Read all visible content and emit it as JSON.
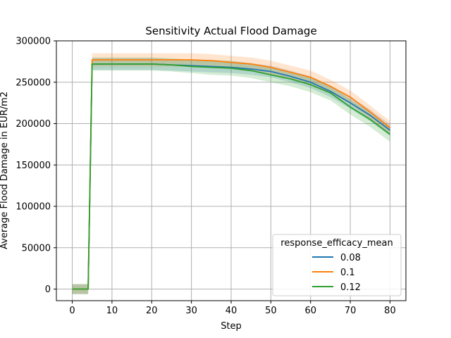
{
  "chart_data": {
    "type": "line",
    "title": "Sensitivity Actual Flood Damage",
    "xlabel": "Step",
    "ylabel": "Average Flood Damage in EUR/m2",
    "xlim": [
      -4,
      84
    ],
    "ylim": [
      -14000,
      300000
    ],
    "xticks": [
      0,
      10,
      20,
      30,
      40,
      50,
      60,
      70,
      80
    ],
    "yticks": [
      0,
      50000,
      100000,
      150000,
      200000,
      250000,
      300000
    ],
    "grid": true,
    "legend": {
      "title": "response_efficacy_mean",
      "placement": "lower-right"
    },
    "x": [
      0,
      4,
      5,
      10,
      15,
      20,
      25,
      30,
      35,
      40,
      45,
      50,
      55,
      60,
      65,
      70,
      75,
      80
    ],
    "series": [
      {
        "name": "0.08",
        "color": "#1f77b4",
        "values": [
          0,
          0,
          272000,
          272000,
          272000,
          272000,
          271000,
          270000,
          269000,
          268000,
          266000,
          263000,
          257000,
          250000,
          239000,
          225000,
          210000,
          192000
        ],
        "band": [
          6000,
          6000,
          7000,
          7000,
          7000,
          7000,
          7000,
          7000,
          7000,
          7000,
          7000,
          7000,
          7000,
          7000,
          7000,
          7000,
          7000,
          7000
        ]
      },
      {
        "name": "0.1",
        "color": "#ff7f0e",
        "values": [
          0,
          0,
          277000,
          277000,
          277000,
          277000,
          277000,
          277000,
          276000,
          274000,
          272000,
          268000,
          262000,
          256000,
          245000,
          232000,
          214000,
          195000
        ],
        "band": [
          6000,
          6000,
          8000,
          8000,
          8000,
          8000,
          8000,
          8000,
          8000,
          8000,
          8000,
          8000,
          8000,
          8000,
          8000,
          8000,
          8000,
          8000
        ]
      },
      {
        "name": "0.12",
        "color": "#2ca02c",
        "values": [
          0,
          0,
          272000,
          272000,
          272000,
          272000,
          271000,
          269000,
          268000,
          267000,
          264000,
          259000,
          254000,
          247000,
          237000,
          220000,
          205000,
          187000
        ],
        "band": [
          6000,
          6000,
          8000,
          8000,
          8000,
          8000,
          8000,
          8000,
          9000,
          9000,
          9000,
          9000,
          9000,
          9000,
          9000,
          9000,
          9000,
          9000
        ]
      }
    ]
  }
}
